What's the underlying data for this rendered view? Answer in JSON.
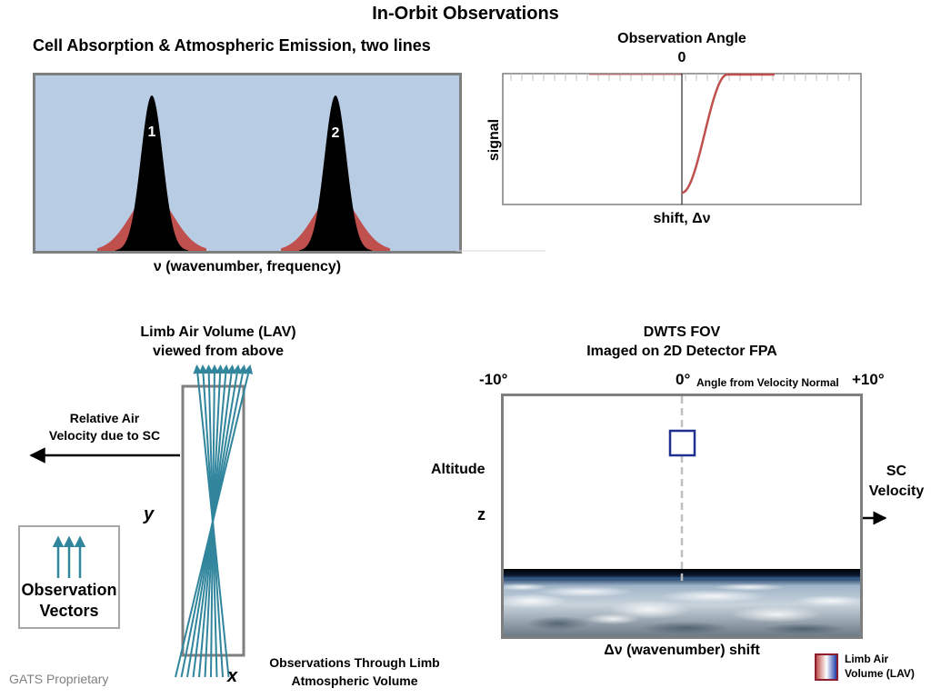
{
  "title": "In-Orbit Observations",
  "panel1": {
    "title": "Cell Absorption & Atmospheric Emission, two lines",
    "xlabel": "ν (wavenumber, frequency)",
    "line_labels": [
      "1",
      "2"
    ],
    "colors": {
      "background": "#b8cce4",
      "absorption": "#000000",
      "emission": "#c0504d",
      "border": "#7f7f7f"
    }
  },
  "panel2": {
    "title": "Observation Angle",
    "zero_label": "0",
    "ylabel": "signal",
    "xlabel": "shift, Δν",
    "curve_color": "#c0504d"
  },
  "lav": {
    "title_line1": "Limb Air Volume (LAV)",
    "title_line2": "viewed from above",
    "velocity_line1": "Relative Air",
    "velocity_line2": "Velocity due to SC",
    "y_label": "y",
    "x_label": "x",
    "obs_vectors_line1": "Observation",
    "obs_vectors_line2": "Vectors",
    "obs_through_line1": "Observations Through Limb",
    "obs_through_line2": "Atmospheric Volume",
    "ray_color": "#31859c"
  },
  "dwts": {
    "title_line1": "DWTS FOV",
    "title_line2": "Imaged on 2D Detector FPA",
    "neg_angle": "-10°",
    "zero_angle": "0°",
    "angle_caption": "Angle from Velocity Normal",
    "pos_angle": "+10°",
    "altitude_label": "Altitude",
    "z_label": "z",
    "sc_velocity_line1": "SC",
    "sc_velocity_line2": "Velocity",
    "shift_label": "Δν (wavenumber) shift",
    "marker_color": "#1f2f8f"
  },
  "legend": {
    "line1": "Limb Air",
    "line2": "Volume (LAV)"
  },
  "footer": "GATS Proprietary"
}
